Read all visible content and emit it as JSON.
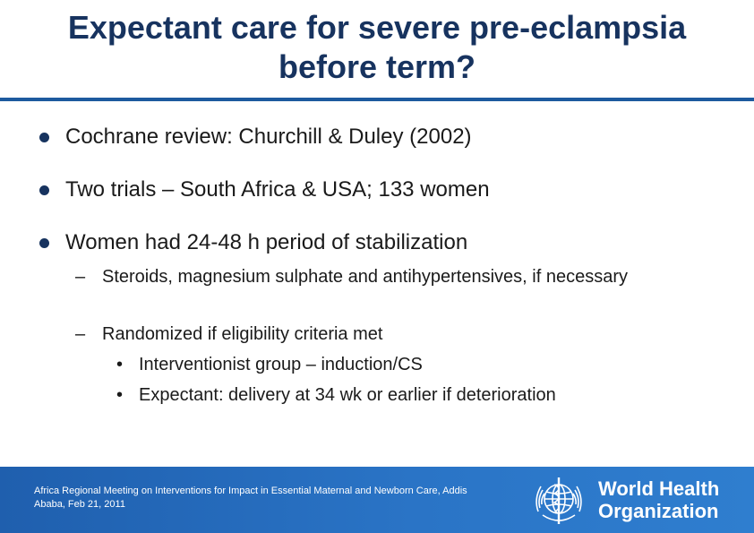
{
  "slide": {
    "title_line1": "Expectant care for severe pre-eclampsia",
    "title_line2": "before term?",
    "bullets": [
      "Cochrane review: Churchill & Duley (2002)",
      "Two trials – South Africa & USA; 133 women",
      "Women had 24-48 h period of stabilization"
    ],
    "sub_bullets": [
      "Steroids, magnesium sulphate and antihypertensives, if necessary",
      "Randomized if eligibility criteria met"
    ],
    "sub_sub_bullets": [
      "Interventionist group – induction/CS",
      "Expectant: delivery at 34 wk or earlier if deterioration"
    ],
    "markers": {
      "dash": "–",
      "dot": "•"
    }
  },
  "footer": {
    "meeting": "Africa Regional Meeting on Interventions for Impact in Essential Maternal and Newborn Care, Addis Ababa, Feb 21, 2011",
    "org_line1": "World Health",
    "org_line2": "Organization",
    "logo_icon": "who-emblem-icon"
  },
  "colors": {
    "title": "#17335f",
    "footer_bar": "#2a74c6",
    "text": "#1a1a1a"
  }
}
